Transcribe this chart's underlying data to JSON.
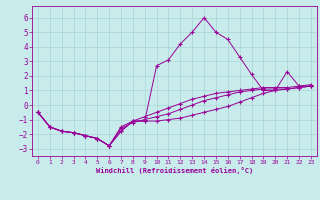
{
  "xlabel": "Windchill (Refroidissement éolien,°C)",
  "bg_color": "#c8ecec",
  "grid_color": "#aad4d4",
  "line_color": "#990099",
  "xlim": [
    -0.5,
    23.5
  ],
  "ylim": [
    -3.5,
    6.8
  ],
  "xticks": [
    0,
    1,
    2,
    3,
    4,
    5,
    6,
    7,
    8,
    9,
    10,
    11,
    12,
    13,
    14,
    15,
    16,
    17,
    18,
    19,
    20,
    21,
    22,
    23
  ],
  "yticks": [
    -3,
    -2,
    -1,
    0,
    1,
    2,
    3,
    4,
    5,
    6
  ],
  "series1_x": [
    0,
    1,
    2,
    3,
    4,
    5,
    6,
    7,
    8,
    9,
    10,
    11,
    12,
    13,
    14,
    15,
    16,
    17,
    18,
    19,
    20,
    21,
    22,
    23
  ],
  "series1_y": [
    -0.5,
    -1.5,
    -1.8,
    -1.9,
    -2.1,
    -2.3,
    -2.8,
    -1.8,
    -1.1,
    -1.1,
    2.7,
    3.1,
    4.2,
    5.0,
    6.0,
    5.0,
    4.5,
    3.3,
    2.1,
    1.0,
    1.0,
    2.3,
    1.3,
    1.3
  ],
  "series2_x": [
    0,
    1,
    2,
    3,
    4,
    5,
    6,
    7,
    8,
    9,
    10,
    11,
    12,
    13,
    14,
    15,
    16,
    17,
    18,
    19,
    20,
    21,
    22,
    23
  ],
  "series2_y": [
    -0.5,
    -1.5,
    -1.8,
    -1.9,
    -2.1,
    -2.3,
    -2.8,
    -1.8,
    -1.1,
    -1.1,
    -1.1,
    -1.0,
    -0.9,
    -0.7,
    -0.5,
    -0.3,
    -0.1,
    0.2,
    0.5,
    0.8,
    1.0,
    1.1,
    1.2,
    1.3
  ],
  "series3_x": [
    0,
    1,
    2,
    3,
    4,
    5,
    6,
    7,
    8,
    9,
    10,
    11,
    12,
    13,
    14,
    15,
    16,
    17,
    18,
    19,
    20,
    21,
    22,
    23
  ],
  "series3_y": [
    -0.5,
    -1.5,
    -1.8,
    -1.9,
    -2.1,
    -2.3,
    -2.8,
    -1.6,
    -1.2,
    -1.0,
    -0.8,
    -0.6,
    -0.3,
    0.0,
    0.3,
    0.5,
    0.7,
    0.9,
    1.0,
    1.1,
    1.1,
    1.1,
    1.2,
    1.3
  ],
  "series4_x": [
    0,
    1,
    2,
    3,
    4,
    5,
    6,
    7,
    8,
    9,
    10,
    11,
    12,
    13,
    14,
    15,
    16,
    17,
    18,
    19,
    20,
    21,
    22,
    23
  ],
  "series4_y": [
    -0.5,
    -1.5,
    -1.8,
    -1.9,
    -2.1,
    -2.3,
    -2.8,
    -1.5,
    -1.1,
    -0.8,
    -0.5,
    -0.2,
    0.1,
    0.4,
    0.6,
    0.8,
    0.9,
    1.0,
    1.1,
    1.2,
    1.2,
    1.2,
    1.3,
    1.4
  ]
}
